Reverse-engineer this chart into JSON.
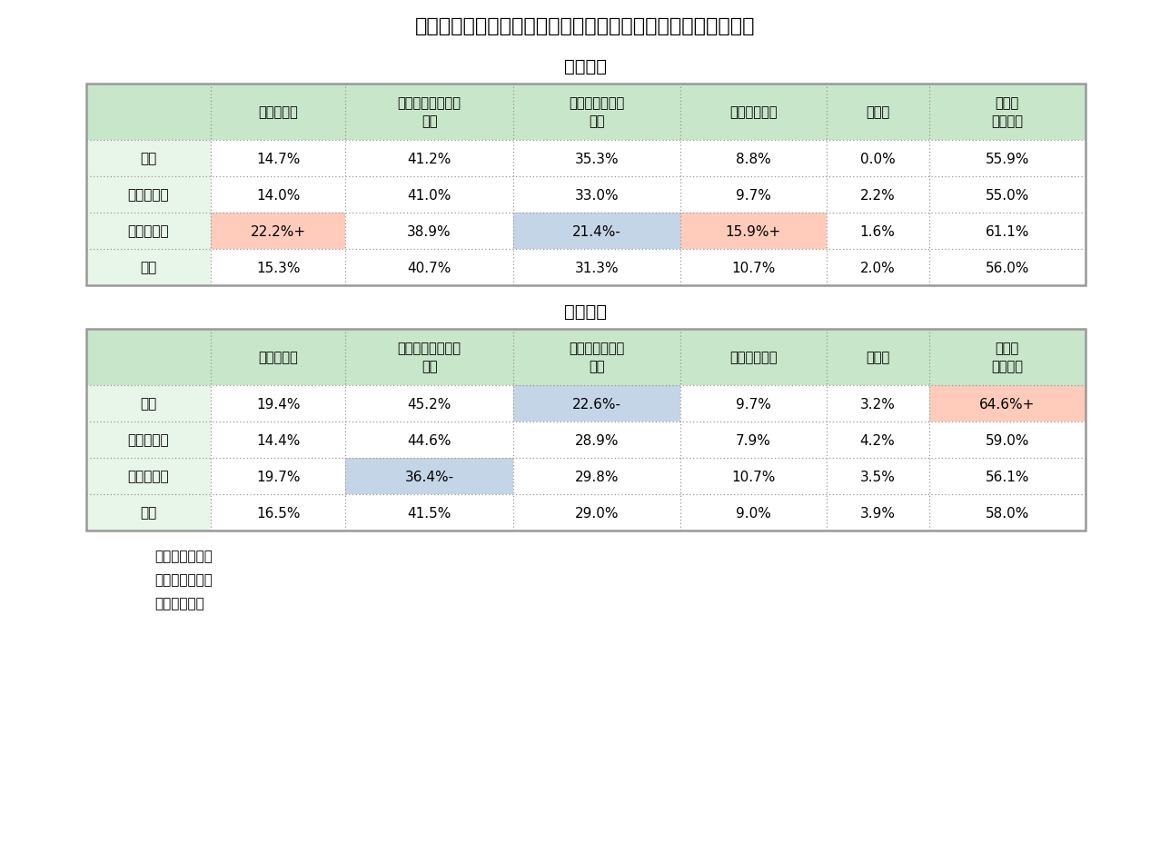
{
  "title": "図表４　性・配偶関係別にみた退職後の生活資金に関する不安",
  "male_label": "＜男性＞",
  "female_label": "＜女性＞",
  "col_headers": [
    "とても不安",
    "どちらかといえば\n不安",
    "あまり不安では\nない",
    "不安ではない",
    "無回答",
    "不安層\n（再掲）"
  ],
  "row_headers_male": [
    "未婚",
    "配偶者あり",
    "離別・死別",
    "全体"
  ],
  "row_headers_female": [
    "未婚",
    "配偶者あり",
    "離別・死別",
    "全体"
  ],
  "male_data": [
    [
      "14.7%",
      "41.2%",
      "35.3%",
      "8.8%",
      "0.0%",
      "55.9%"
    ],
    [
      "14.0%",
      "41.0%",
      "33.0%",
      "9.7%",
      "2.2%",
      "55.0%"
    ],
    [
      "22.2%+",
      "38.9%",
      "21.4%-",
      "15.9%+",
      "1.6%",
      "61.1%"
    ],
    [
      "15.3%",
      "40.7%",
      "31.3%",
      "10.7%",
      "2.0%",
      "56.0%"
    ]
  ],
  "female_data": [
    [
      "19.4%",
      "45.2%",
      "22.6%-",
      "9.7%",
      "3.2%",
      "64.6%+"
    ],
    [
      "14.4%",
      "44.6%",
      "28.9%",
      "7.9%",
      "4.2%",
      "59.0%"
    ],
    [
      "19.7%",
      "36.4%-",
      "29.8%",
      "10.7%",
      "3.5%",
      "56.1%"
    ],
    [
      "16.5%",
      "41.5%",
      "29.0%",
      "9.0%",
      "3.9%",
      "58.0%"
    ]
  ],
  "male_cell_colors": [
    [
      "none",
      "none",
      "none",
      "none",
      "none",
      "none"
    ],
    [
      "none",
      "none",
      "none",
      "none",
      "none",
      "none"
    ],
    [
      "salmon",
      "none",
      "lightblue",
      "salmon",
      "none",
      "none"
    ],
    [
      "none",
      "none",
      "none",
      "none",
      "none",
      "none"
    ]
  ],
  "female_cell_colors": [
    [
      "none",
      "none",
      "lightblue",
      "none",
      "none",
      "salmon"
    ],
    [
      "none",
      "none",
      "none",
      "none",
      "none",
      "none"
    ],
    [
      "none",
      "lightblue",
      "none",
      "none",
      "none",
      "none"
    ],
    [
      "none",
      "none",
      "none",
      "none",
      "none",
      "none"
    ]
  ],
  "header_bg": "#c8e6c9",
  "row_label_bg": "#e8f5e9",
  "cell_bg": "#ffffff",
  "border_color": "#999999",
  "salmon_color": "#FFCBBB",
  "lightblue_color": "#C5D5E8",
  "notes": [
    "（備考１）同上",
    "（備考２）同上",
    "（資料）同上"
  ],
  "background_color": "#ffffff"
}
